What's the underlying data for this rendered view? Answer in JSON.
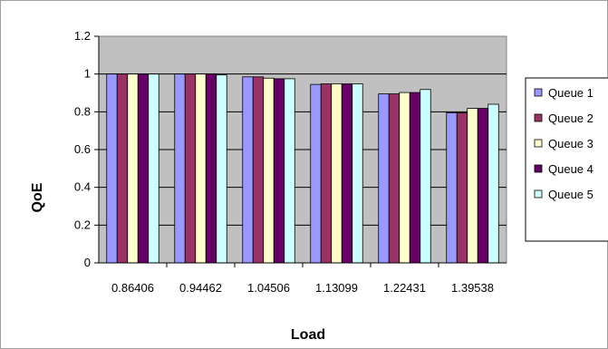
{
  "chart_data": {
    "type": "bar",
    "title": "",
    "xlabel": "Load",
    "ylabel": "QoE",
    "ylim": [
      0,
      1.2
    ],
    "yticks": [
      0,
      0.2,
      0.4,
      0.6,
      0.8,
      1,
      1.2
    ],
    "ytick_labels": [
      "0",
      "0.2",
      "0.4",
      "0.6",
      "0.8",
      "1",
      "1.2"
    ],
    "grid": true,
    "legend_position": "right",
    "plot_background": "#c0c0c0",
    "categories": [
      "0.86406",
      "0.94462",
      "1.04506",
      "1.13099",
      "1.22431",
      "1.39538"
    ],
    "series": [
      {
        "name": "Queue 1",
        "color": "#9999ff",
        "values": [
          1.0,
          1.0,
          0.985,
          0.945,
          0.895,
          0.795
        ]
      },
      {
        "name": "Queue 2",
        "color": "#993366",
        "values": [
          1.0,
          1.0,
          0.985,
          0.948,
          0.895,
          0.795
        ]
      },
      {
        "name": "Queue 3",
        "color": "#ffffcc",
        "values": [
          1.0,
          1.0,
          0.978,
          0.948,
          0.902,
          0.818
        ]
      },
      {
        "name": "Queue 4",
        "color": "#660066",
        "values": [
          1.0,
          1.0,
          0.975,
          0.948,
          0.902,
          0.818
        ]
      },
      {
        "name": "Queue 5",
        "color": "#ccffff",
        "values": [
          1.0,
          0.995,
          0.975,
          0.948,
          0.918,
          0.84
        ]
      }
    ]
  }
}
